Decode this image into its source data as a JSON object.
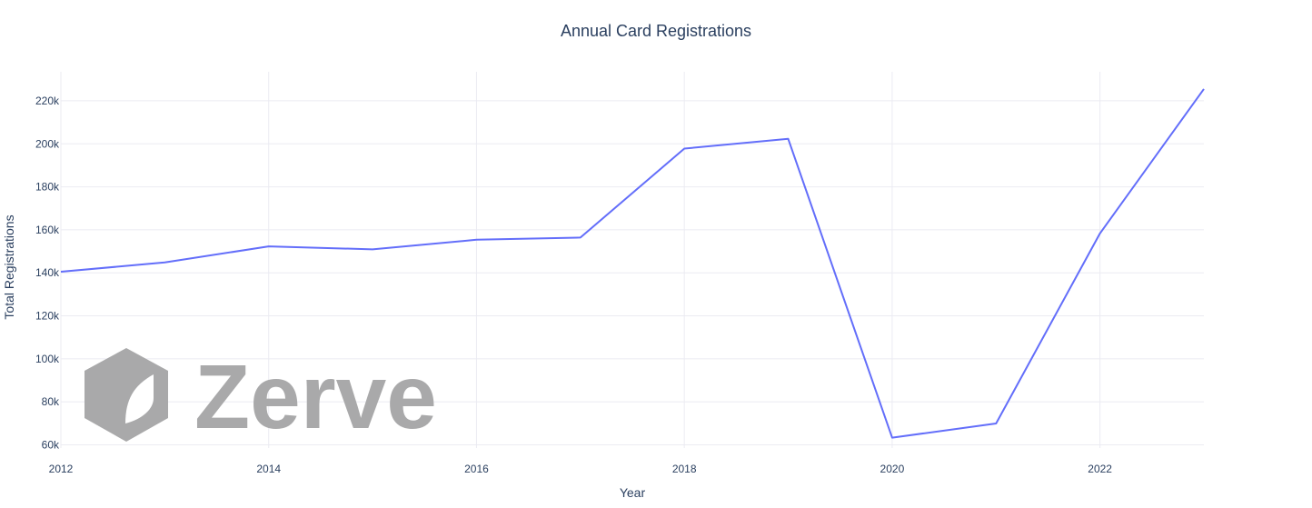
{
  "chart_data": {
    "type": "line",
    "title": "Annual Card Registrations",
    "xlabel": "Year",
    "ylabel": "Total Registrations",
    "x": [
      2012,
      2013,
      2014,
      2015,
      2016,
      2017,
      2018,
      2019,
      2020,
      2021,
      2022,
      2023
    ],
    "series": [
      {
        "values": [
          140500,
          144800,
          152300,
          150900,
          155400,
          156400,
          197800,
          202300,
          63300,
          69900,
          158300,
          225500
        ],
        "color": "#636efa"
      }
    ],
    "xlim": [
      2012,
      2023
    ],
    "ylim": [
      58500,
      233500
    ],
    "x_ticks": [
      2012,
      2014,
      2016,
      2018,
      2020,
      2022
    ],
    "x_tick_labels": [
      "2012",
      "2014",
      "2016",
      "2018",
      "2020",
      "2022"
    ],
    "y_ticks": [
      60000,
      80000,
      100000,
      120000,
      140000,
      160000,
      180000,
      200000,
      220000
    ],
    "y_tick_labels": [
      "60k",
      "80k",
      "100k",
      "120k",
      "140k",
      "160k",
      "180k",
      "200k",
      "220k"
    ],
    "grid": true,
    "legend": "none"
  },
  "watermark": {
    "text": "Zerve",
    "icon": "zerve-logo-icon"
  }
}
